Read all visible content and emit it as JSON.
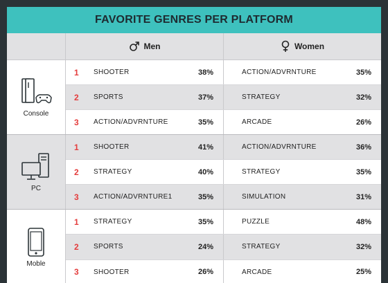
{
  "title": "FAVORITE GENRES PER PLATFORM",
  "header": {
    "men": "Men",
    "women": "Women"
  },
  "colors": {
    "accent": "#3ec1be",
    "rank": "#e43d3d",
    "shade": "#e1e1e3"
  },
  "groups": [
    {
      "platform": "Console",
      "icon": "console-icon",
      "rows": [
        {
          "rank": "1",
          "men_genre": "SHOOTER",
          "men_pct": "38%",
          "women_genre": "ACTION/ADVRNTURE",
          "women_pct": "35%"
        },
        {
          "rank": "2",
          "men_genre": "SPORTS",
          "men_pct": "37%",
          "women_genre": "STRATEGY",
          "women_pct": "32%"
        },
        {
          "rank": "3",
          "men_genre": "ACTION/ADVRNTURE",
          "men_pct": "35%",
          "women_genre": "ARCADE",
          "women_pct": "26%"
        }
      ]
    },
    {
      "platform": "PC",
      "icon": "pc-icon",
      "rows": [
        {
          "rank": "1",
          "men_genre": "SHOOTER",
          "men_pct": "41%",
          "women_genre": "ACTION/ADVRNTURE",
          "women_pct": "36%"
        },
        {
          "rank": "2",
          "men_genre": "STRATEGY",
          "men_pct": "40%",
          "women_genre": "STRATEGY",
          "women_pct": "35%"
        },
        {
          "rank": "3",
          "men_genre": "ACTION/ADVRNTURE1",
          "men_pct": "35%",
          "women_genre": "SIMULATION",
          "women_pct": "31%"
        }
      ]
    },
    {
      "platform": "Moble",
      "icon": "mobile-phone-icon",
      "rows": [
        {
          "rank": "1",
          "men_genre": "STRATEGY",
          "men_pct": "35%",
          "women_genre": "PUZZLE",
          "women_pct": "48%"
        },
        {
          "rank": "2",
          "men_genre": "SPORTS",
          "men_pct": "24%",
          "women_genre": "STRATEGY",
          "women_pct": "32%"
        },
        {
          "rank": "3",
          "men_genre": "SHOOTER",
          "men_pct": "26%",
          "women_genre": "ARCADE",
          "women_pct": "25%"
        }
      ]
    }
  ]
}
